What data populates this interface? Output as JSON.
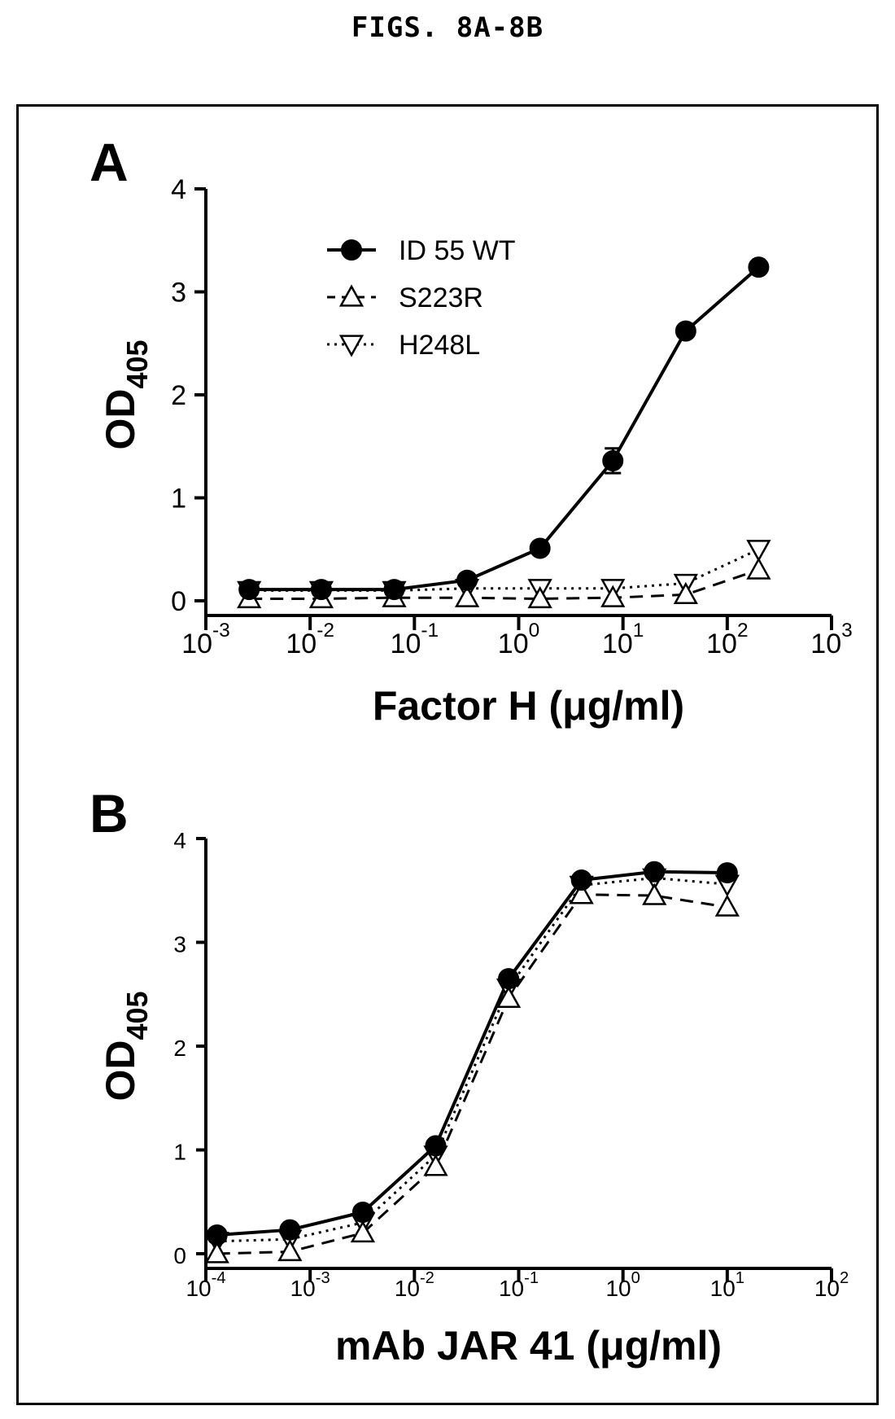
{
  "figure": {
    "title": "FIGS. 8A-8B"
  },
  "chart_data": [
    {
      "panel": "A",
      "type": "line",
      "x_scale": "log",
      "xlabel": "Factor H (μg/ml)",
      "ylabel_main": "OD",
      "ylabel_sub": "405",
      "xlim": [
        0.001,
        1000
      ],
      "ylim": [
        0,
        4
      ],
      "x_ticks": [
        {
          "value": 0.001,
          "base": "10",
          "exp": "-3"
        },
        {
          "value": 0.01,
          "base": "10",
          "exp": "-2"
        },
        {
          "value": 0.1,
          "base": "10",
          "exp": "-1"
        },
        {
          "value": 1,
          "base": "10",
          "exp": "0"
        },
        {
          "value": 10,
          "base": "10",
          "exp": "1"
        },
        {
          "value": 100,
          "base": "10",
          "exp": "2"
        },
        {
          "value": 1000,
          "base": "10",
          "exp": "3"
        }
      ],
      "y_ticks": [
        "0",
        "1",
        "2",
        "3",
        "4"
      ],
      "legend_position": "top-left",
      "series": [
        {
          "name": "ID 55 WT",
          "marker": "circle",
          "line": "solid",
          "x": [
            0.0026,
            0.0128,
            0.064,
            0.32,
            1.6,
            8,
            40,
            200
          ],
          "y": [
            0.11,
            0.11,
            0.11,
            0.2,
            0.51,
            1.36,
            2.62,
            3.24
          ],
          "err": [
            0,
            0,
            0,
            0,
            0,
            0.12,
            0,
            0
          ]
        },
        {
          "name": "S223R",
          "marker": "triangle-up",
          "line": "dashed",
          "x": [
            0.0026,
            0.0128,
            0.064,
            0.32,
            1.6,
            8,
            40,
            200
          ],
          "y": [
            0.02,
            0.02,
            0.03,
            0.03,
            0.02,
            0.03,
            0.06,
            0.3
          ],
          "err": [
            0,
            0,
            0,
            0,
            0,
            0,
            0,
            0
          ]
        },
        {
          "name": "H248L",
          "marker": "triangle-down",
          "line": "dotted",
          "x": [
            0.0026,
            0.0128,
            0.064,
            0.32,
            1.6,
            8,
            40,
            200
          ],
          "y": [
            0.1,
            0.1,
            0.1,
            0.12,
            0.12,
            0.12,
            0.17,
            0.5
          ],
          "err": [
            0,
            0,
            0,
            0,
            0,
            0,
            0,
            0
          ]
        }
      ]
    },
    {
      "panel": "B",
      "type": "line",
      "x_scale": "log",
      "xlabel": "mAb JAR 41 (μg/ml)",
      "ylabel_main": "OD",
      "ylabel_sub": "405",
      "xlim": [
        0.0001,
        100
      ],
      "ylim": [
        0,
        4
      ],
      "x_ticks": [
        {
          "value": 0.0001,
          "base": "10",
          "exp": "-4"
        },
        {
          "value": 0.001,
          "base": "10",
          "exp": "-3"
        },
        {
          "value": 0.01,
          "base": "10",
          "exp": "-2"
        },
        {
          "value": 0.1,
          "base": "10",
          "exp": "-1"
        },
        {
          "value": 1,
          "base": "10",
          "exp": "0"
        },
        {
          "value": 10,
          "base": "10",
          "exp": "1"
        },
        {
          "value": 100,
          "base": "10",
          "exp": "2"
        }
      ],
      "y_ticks": [
        "0",
        "1",
        "2",
        "3",
        "4"
      ],
      "series": [
        {
          "name": "ID 55 WT",
          "marker": "circle",
          "line": "solid",
          "x": [
            0.000128,
            0.00064,
            0.0032,
            0.016,
            0.08,
            0.4,
            2,
            10
          ],
          "y": [
            0.18,
            0.23,
            0.4,
            1.04,
            2.65,
            3.6,
            3.68,
            3.67
          ],
          "err": [
            0,
            0,
            0,
            0,
            0,
            0,
            0,
            0
          ]
        },
        {
          "name": "S223R",
          "marker": "triangle-up",
          "line": "dashed",
          "x": [
            0.000128,
            0.00064,
            0.0032,
            0.016,
            0.08,
            0.4,
            2,
            10
          ],
          "y": [
            0.0,
            0.02,
            0.2,
            0.84,
            2.46,
            3.46,
            3.45,
            3.34
          ],
          "err": [
            0,
            0,
            0,
            0,
            0,
            0,
            0,
            0
          ]
        },
        {
          "name": "H248L",
          "marker": "triangle-down",
          "line": "dotted",
          "x": [
            0.000128,
            0.00064,
            0.0032,
            0.016,
            0.08,
            0.4,
            2,
            10
          ],
          "y": [
            0.12,
            0.14,
            0.3,
            0.95,
            2.56,
            3.55,
            3.62,
            3.56
          ],
          "err": [
            0,
            0,
            0,
            0,
            0,
            0,
            0,
            0
          ]
        }
      ]
    }
  ]
}
